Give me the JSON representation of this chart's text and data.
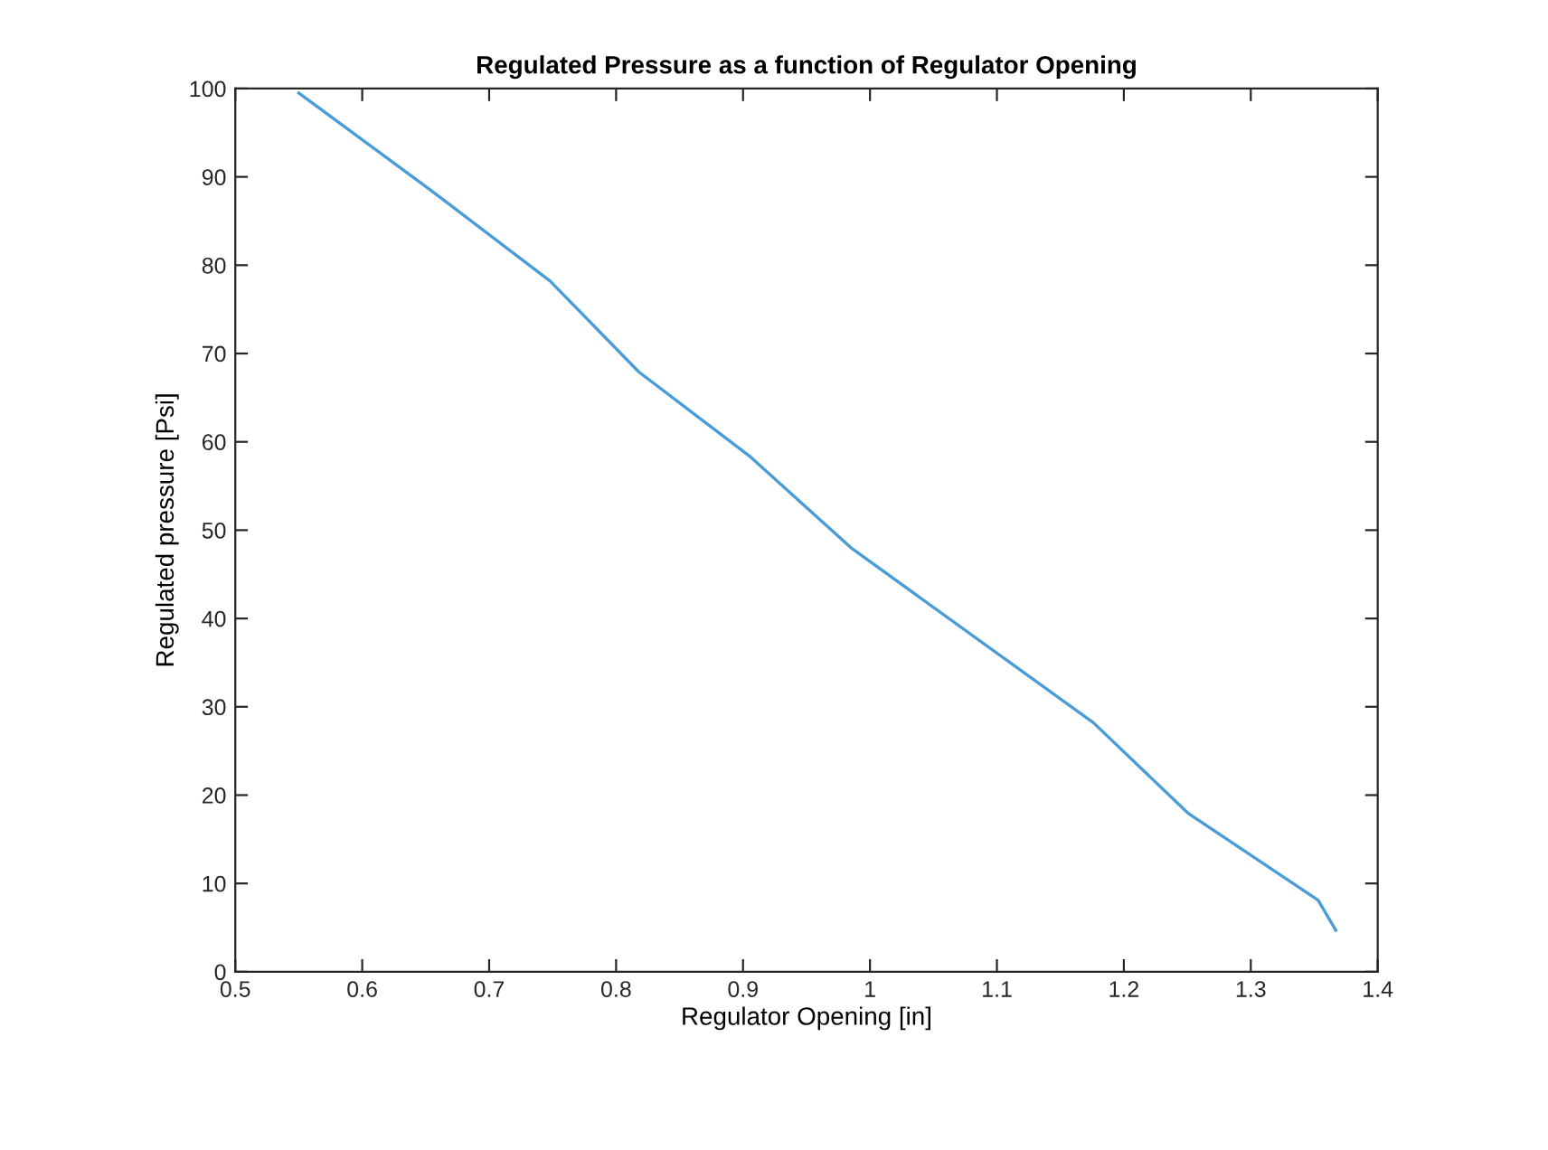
{
  "chart_data": {
    "type": "line",
    "title": "Regulated Pressure as a function of Regulator Opening",
    "xlabel": "Regulator Opening [in]",
    "ylabel": "Regulated pressure [Psi]",
    "x": [
      0.55,
      0.653,
      0.748,
      0.818,
      0.905,
      0.986,
      1.176,
      1.251,
      1.353,
      1.367
    ],
    "series": [
      {
        "color": "#4a9cd8",
        "values": [
          99.5,
          88.6,
          78.2,
          67.9,
          58.4,
          47.9,
          28.2,
          17.9,
          8.1,
          4.7
        ]
      }
    ],
    "xlim": [
      0.5,
      1.4
    ],
    "xticks": [
      0.5,
      0.6,
      0.7,
      0.8,
      0.9,
      1,
      1.1,
      1.2,
      1.3,
      1.4
    ],
    "ylim": [
      0,
      100
    ],
    "yticks": [
      0,
      10,
      20,
      30,
      40,
      50,
      60,
      70,
      80,
      90,
      100
    ],
    "grid": false,
    "legend": false,
    "marker": "none",
    "line_style": "solid"
  }
}
